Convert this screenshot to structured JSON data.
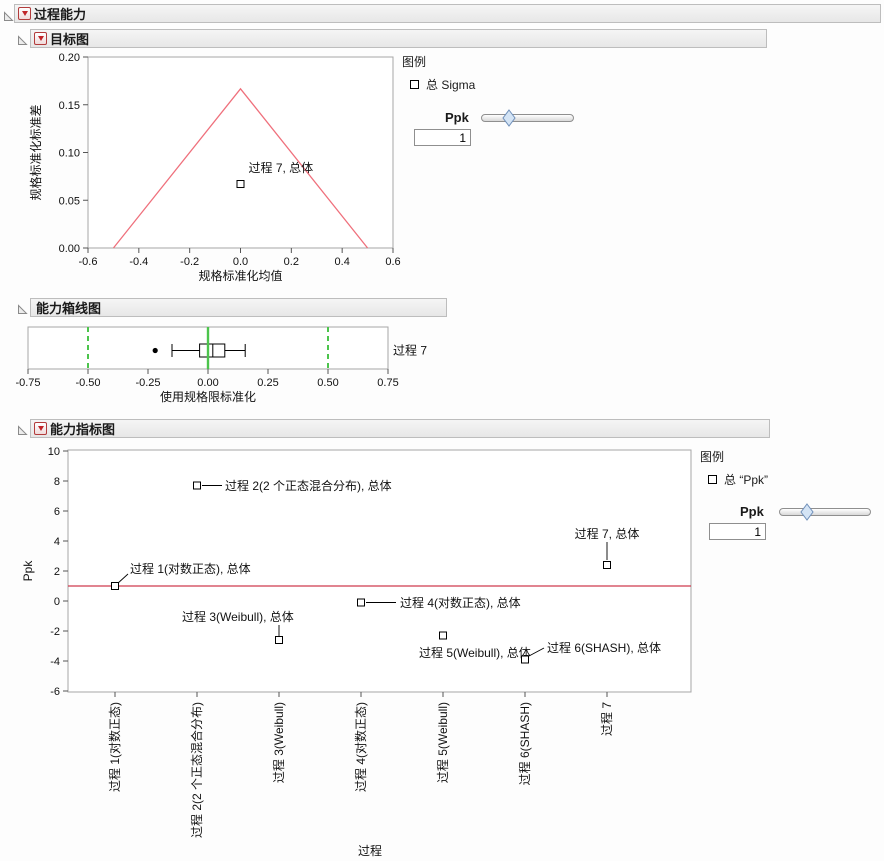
{
  "sections": [
    {
      "title": "过程能力"
    },
    {
      "title": "目标图"
    },
    {
      "title": "能力箱线图"
    },
    {
      "title": "能力指标图"
    }
  ],
  "goal_panel": {
    "legend_title": "图例",
    "legend_item": "总 Sigma",
    "slider_label": "Ppk",
    "slider_value": "1"
  },
  "index_panel": {
    "legend_title": "图例",
    "legend_item": "总 “Ppk”",
    "slider_label": "Ppk",
    "slider_value": "1"
  },
  "colors": {
    "goal_triangle": "#ef707c",
    "ppk_ref_line": "#cf3a4d",
    "spec_green": "#4cc44c",
    "frame_gray": "#a6a6a6",
    "tick_gray": "#555555"
  },
  "chart_data": [
    {
      "type": "scatter",
      "title": "目标图",
      "xlabel": "规格标准化均值",
      "ylabel": "规格标准化标准差",
      "xlim": [
        -0.6,
        0.6
      ],
      "ylim": [
        0,
        0.2
      ],
      "xticks": [
        {
          "v": -0.6,
          "label": "-0.6"
        },
        {
          "v": -0.4,
          "label": "-0.4"
        },
        {
          "v": -0.2,
          "label": "-0.2"
        },
        {
          "v": 0.0,
          "label": "0.0"
        },
        {
          "v": 0.2,
          "label": "0.2"
        },
        {
          "v": 0.4,
          "label": "0.4"
        },
        {
          "v": 0.6,
          "label": "0.6"
        }
      ],
      "yticks": [
        {
          "v": 0.0,
          "label": "0.00"
        },
        {
          "v": 0.05,
          "label": "0.05"
        },
        {
          "v": 0.1,
          "label": "0.10"
        },
        {
          "v": 0.15,
          "label": "0.15"
        },
        {
          "v": 0.2,
          "label": "0.20"
        }
      ],
      "triangle": [
        [
          -0.5,
          0
        ],
        [
          0,
          0.1667
        ],
        [
          0.5,
          0
        ]
      ],
      "points": [
        {
          "x": 0.0,
          "y": 0.067,
          "label": "过程 7, 总体"
        }
      ],
      "legend_entries": [
        "总 Sigma"
      ],
      "grid": false
    },
    {
      "type": "boxplot",
      "title": "能力箱线图",
      "xlabel": "使用规格限标准化",
      "row_label": "过程 7",
      "xlim": [
        -0.75,
        0.75
      ],
      "xticks": [
        {
          "v": -0.75,
          "label": "-0.75"
        },
        {
          "v": -0.5,
          "label": "-0.50"
        },
        {
          "v": -0.25,
          "label": "-0.25"
        },
        {
          "v": 0.0,
          "label": "0.00"
        },
        {
          "v": 0.25,
          "label": "0.25"
        },
        {
          "v": 0.5,
          "label": "0.50"
        },
        {
          "v": 0.75,
          "label": "0.75"
        }
      ],
      "ref_solid": 0.0,
      "ref_dashed": [
        -0.5,
        0.5
      ],
      "box": {
        "outlier": -0.22,
        "whisker_low": -0.15,
        "q1": -0.035,
        "median": 0.02,
        "q3": 0.07,
        "whisker_high": 0.155
      }
    },
    {
      "type": "scatter",
      "title": "能力指标图",
      "xlabel": "过程",
      "ylabel": "Ppk",
      "ylim": [
        -6,
        10
      ],
      "yticks": [
        {
          "v": 10,
          "label": "10"
        },
        {
          "v": 8,
          "label": "8"
        },
        {
          "v": 6,
          "label": "6"
        },
        {
          "v": 4,
          "label": "4"
        },
        {
          "v": 2,
          "label": "2"
        },
        {
          "v": 0,
          "label": "0"
        },
        {
          "v": -2,
          "label": "-2"
        },
        {
          "v": -4,
          "label": "-4"
        },
        {
          "v": -6,
          "label": "-6"
        }
      ],
      "ref_line": 1,
      "categories": [
        "过程 1(对数正态)",
        "过程 2(2 个正态混合分布)",
        "过程 3(Weibull)",
        "过程 4(对数正态)",
        "过程 5(Weibull)",
        "过程 6(SHASH)",
        "过程 7"
      ],
      "series": [
        {
          "name": "总 “Ppk”",
          "values": [
            1.0,
            7.7,
            -2.6,
            -0.1,
            -2.3,
            -3.9,
            2.4
          ]
        }
      ],
      "point_labels": [
        "过程 1(对数正态), 总体",
        "过程 2(2 个正态混合分布), 总体",
        "过程 3(Weibull), 总体",
        "过程 4(对数正态), 总体",
        "过程 5(Weibull), 总体",
        "过程 6(SHASH), 总体",
        "过程 7, 总体"
      ],
      "legend_entries": [
        "总 “Ppk”"
      ],
      "grid": false
    }
  ]
}
